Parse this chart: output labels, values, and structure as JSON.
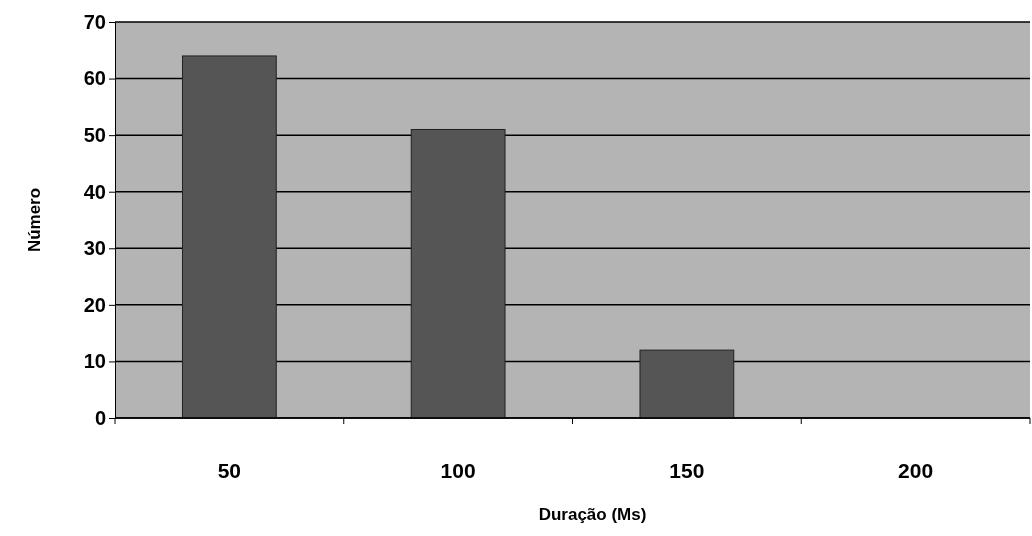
{
  "chart_data": {
    "type": "bar",
    "xlabel": "Duração (Ms)",
    "ylabel": "Número",
    "categories": [
      "50",
      "100",
      "150",
      "200"
    ],
    "values": [
      64,
      51,
      12,
      0
    ],
    "color": "#555555",
    "ylim": [
      0,
      70
    ],
    "yticks": [
      0,
      10,
      20,
      30,
      40,
      50,
      60,
      70
    ],
    "grid": "y"
  }
}
